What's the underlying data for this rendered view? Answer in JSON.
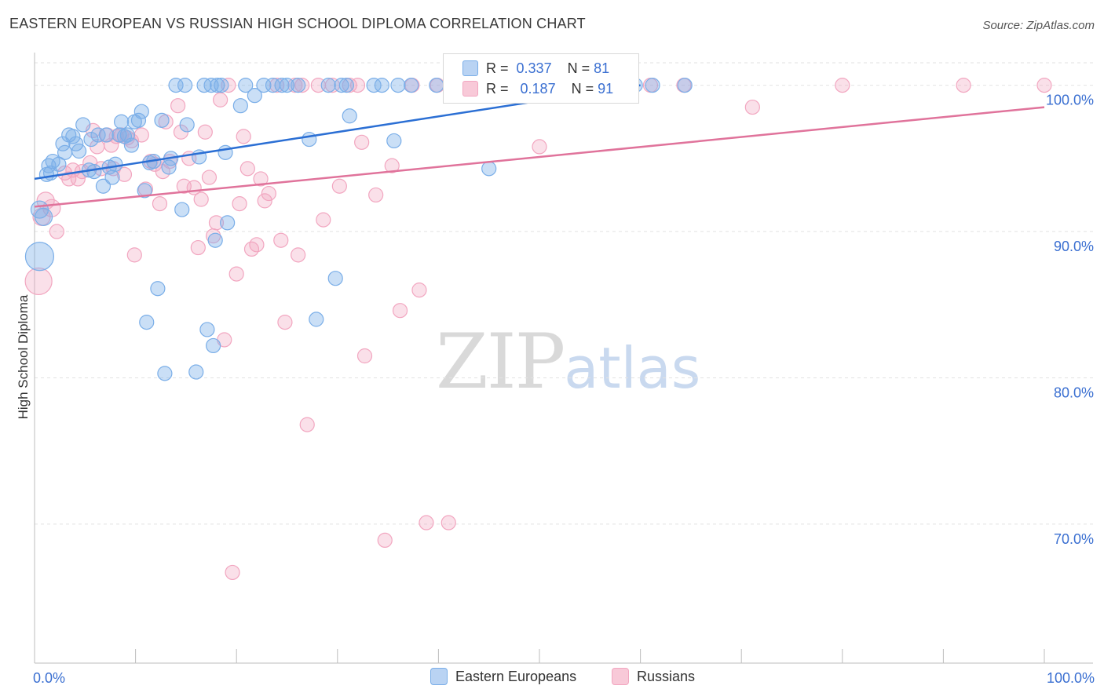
{
  "title": "EASTERN EUROPEAN VS RUSSIAN HIGH SCHOOL DIPLOMA CORRELATION CHART",
  "source": "Source: ZipAtlas.com",
  "watermark": {
    "zip": "ZIP",
    "atlas": "atlas"
  },
  "legend_box": {
    "r_label": "R =",
    "n_label": "N =",
    "rows": [
      {
        "r": "0.337",
        "n": "81"
      },
      {
        "r": "0.187",
        "n": "91"
      }
    ]
  },
  "chart_data": {
    "type": "scatter",
    "title": "EASTERN EUROPEAN VS RUSSIAN HIGH SCHOOL DIPLOMA CORRELATION CHART",
    "xlabel": "",
    "ylabel": "High School Diploma",
    "xlim": [
      0,
      100
    ],
    "ylim": [
      60.5,
      102.5
    ],
    "x_tick_labels": [
      "0.0%",
      "100.0%"
    ],
    "y_ticks": [
      70,
      80,
      90,
      100
    ],
    "y_tick_labels": [
      "70.0%",
      "80.0%",
      "90.0%",
      "100.0%"
    ],
    "grid": true,
    "legend_position": "bottom",
    "colors": {
      "eastern": "#7aaee8",
      "eastern_line": "#2b6fd4",
      "russian": "#f2a6c0",
      "russian_line": "#e0739b",
      "tick_label": "#3a6fd1"
    },
    "series": [
      {
        "name": "Eastern Europeans",
        "r": 0.337,
        "n": 81,
        "trend": {
          "x0": 0,
          "y0": 93.6,
          "x1": 60,
          "y1": 100.0
        },
        "points": [
          [
            0.5,
            88.3
          ],
          [
            0.5,
            91.5
          ],
          [
            0.9,
            91.0
          ],
          [
            1.2,
            93.9
          ],
          [
            1.4,
            94.5
          ],
          [
            1.6,
            94.0
          ],
          [
            1.8,
            94.8
          ],
          [
            2.4,
            94.6
          ],
          [
            2.8,
            96.0
          ],
          [
            3.0,
            95.4
          ],
          [
            3.4,
            96.6
          ],
          [
            3.8,
            96.5
          ],
          [
            4.1,
            96.0
          ],
          [
            4.4,
            95.5
          ],
          [
            4.8,
            97.3
          ],
          [
            5.4,
            94.2
          ],
          [
            5.6,
            96.3
          ],
          [
            5.9,
            94.1
          ],
          [
            6.3,
            96.6
          ],
          [
            6.8,
            93.1
          ],
          [
            7.1,
            96.6
          ],
          [
            7.4,
            94.4
          ],
          [
            7.7,
            93.7
          ],
          [
            8.0,
            94.6
          ],
          [
            8.4,
            96.6
          ],
          [
            8.6,
            97.5
          ],
          [
            8.9,
            96.5
          ],
          [
            9.2,
            96.6
          ],
          [
            9.6,
            95.9
          ],
          [
            9.9,
            97.5
          ],
          [
            10.3,
            97.6
          ],
          [
            10.6,
            98.2
          ],
          [
            10.9,
            92.8
          ],
          [
            11.1,
            83.8
          ],
          [
            11.4,
            94.7
          ],
          [
            11.8,
            94.8
          ],
          [
            12.2,
            86.1
          ],
          [
            12.6,
            97.6
          ],
          [
            12.9,
            80.3
          ],
          [
            13.3,
            94.4
          ],
          [
            13.5,
            95.0
          ],
          [
            14.0,
            100.0
          ],
          [
            14.6,
            91.5
          ],
          [
            14.9,
            100.0
          ],
          [
            15.1,
            97.3
          ],
          [
            16.0,
            80.4
          ],
          [
            16.3,
            95.1
          ],
          [
            16.8,
            100.0
          ],
          [
            17.1,
            83.3
          ],
          [
            17.5,
            100.0
          ],
          [
            17.7,
            82.2
          ],
          [
            17.9,
            89.4
          ],
          [
            18.1,
            100.0
          ],
          [
            18.5,
            100.0
          ],
          [
            18.9,
            95.4
          ],
          [
            19.1,
            90.6
          ],
          [
            20.4,
            98.6
          ],
          [
            20.9,
            100.0
          ],
          [
            21.8,
            99.3
          ],
          [
            22.7,
            100.0
          ],
          [
            23.6,
            100.0
          ],
          [
            24.5,
            100.0
          ],
          [
            25.0,
            100.0
          ],
          [
            26.1,
            100.0
          ],
          [
            27.2,
            96.3
          ],
          [
            27.9,
            84.0
          ],
          [
            29.1,
            100.0
          ],
          [
            29.8,
            86.8
          ],
          [
            30.4,
            100.0
          ],
          [
            30.9,
            100.0
          ],
          [
            31.2,
            97.9
          ],
          [
            33.6,
            100.0
          ],
          [
            34.4,
            100.0
          ],
          [
            35.6,
            96.2
          ],
          [
            36.0,
            100.0
          ],
          [
            37.3,
            100.0
          ],
          [
            39.8,
            100.0
          ],
          [
            45.0,
            94.3
          ],
          [
            59.5,
            100.0
          ],
          [
            61.2,
            100.0
          ],
          [
            64.4,
            100.0
          ]
        ]
      },
      {
        "name": "Russians",
        "r": 0.187,
        "n": 91,
        "trend": {
          "x0": 0,
          "y0": 91.7,
          "x1": 100,
          "y1": 98.5
        },
        "points": [
          [
            0.4,
            86.6
          ],
          [
            0.7,
            91.0
          ],
          [
            1.1,
            92.1
          ],
          [
            1.7,
            91.6
          ],
          [
            2.2,
            90.0
          ],
          [
            3.0,
            94.0
          ],
          [
            3.4,
            93.6
          ],
          [
            3.8,
            94.2
          ],
          [
            4.3,
            93.6
          ],
          [
            4.7,
            94.1
          ],
          [
            5.5,
            94.7
          ],
          [
            5.8,
            96.9
          ],
          [
            6.2,
            95.8
          ],
          [
            6.6,
            94.3
          ],
          [
            7.2,
            96.6
          ],
          [
            7.6,
            95.9
          ],
          [
            7.8,
            94.3
          ],
          [
            8.1,
            96.5
          ],
          [
            8.6,
            96.6
          ],
          [
            8.9,
            93.9
          ],
          [
            9.2,
            96.4
          ],
          [
            9.6,
            96.2
          ],
          [
            9.9,
            88.4
          ],
          [
            10.6,
            96.6
          ],
          [
            11.0,
            92.9
          ],
          [
            11.5,
            94.8
          ],
          [
            11.9,
            94.6
          ],
          [
            12.4,
            91.9
          ],
          [
            12.7,
            94.1
          ],
          [
            13.0,
            97.5
          ],
          [
            13.4,
            94.8
          ],
          [
            14.2,
            98.6
          ],
          [
            14.5,
            96.8
          ],
          [
            14.8,
            93.1
          ],
          [
            15.3,
            95.0
          ],
          [
            15.8,
            93.0
          ],
          [
            16.2,
            88.9
          ],
          [
            16.5,
            92.2
          ],
          [
            16.9,
            96.8
          ],
          [
            17.3,
            93.7
          ],
          [
            17.7,
            89.7
          ],
          [
            18.0,
            90.6
          ],
          [
            18.4,
            99.0
          ],
          [
            18.8,
            82.6
          ],
          [
            19.2,
            100.0
          ],
          [
            19.6,
            66.7
          ],
          [
            20.0,
            87.1
          ],
          [
            20.3,
            91.9
          ],
          [
            20.7,
            96.5
          ],
          [
            21.1,
            94.3
          ],
          [
            21.5,
            88.8
          ],
          [
            22.0,
            89.1
          ],
          [
            22.4,
            93.6
          ],
          [
            22.8,
            92.1
          ],
          [
            23.2,
            92.6
          ],
          [
            24.0,
            100.0
          ],
          [
            24.4,
            89.4
          ],
          [
            24.8,
            83.8
          ],
          [
            25.8,
            100.0
          ],
          [
            26.1,
            88.4
          ],
          [
            26.5,
            100.0
          ],
          [
            27.0,
            76.8
          ],
          [
            28.1,
            100.0
          ],
          [
            28.6,
            90.8
          ],
          [
            29.5,
            100.0
          ],
          [
            30.2,
            93.1
          ],
          [
            31.2,
            100.0
          ],
          [
            32.0,
            100.0
          ],
          [
            32.4,
            96.1
          ],
          [
            32.7,
            81.5
          ],
          [
            33.8,
            92.5
          ],
          [
            34.7,
            68.9
          ],
          [
            35.4,
            94.5
          ],
          [
            36.2,
            84.6
          ],
          [
            37.4,
            100.0
          ],
          [
            38.1,
            86.0
          ],
          [
            38.8,
            70.1
          ],
          [
            39.9,
            100.0
          ],
          [
            41.0,
            70.1
          ],
          [
            43.5,
            100.0
          ],
          [
            47.8,
            100.0
          ],
          [
            50.0,
            95.8
          ],
          [
            51.6,
            100.0
          ],
          [
            54.3,
            100.0
          ],
          [
            58.1,
            100.0
          ],
          [
            61.0,
            100.0
          ],
          [
            64.3,
            100.0
          ],
          [
            71.1,
            98.5
          ],
          [
            80.0,
            100.0
          ],
          [
            92.0,
            100.0
          ],
          [
            100.0,
            100.0
          ]
        ]
      }
    ]
  }
}
